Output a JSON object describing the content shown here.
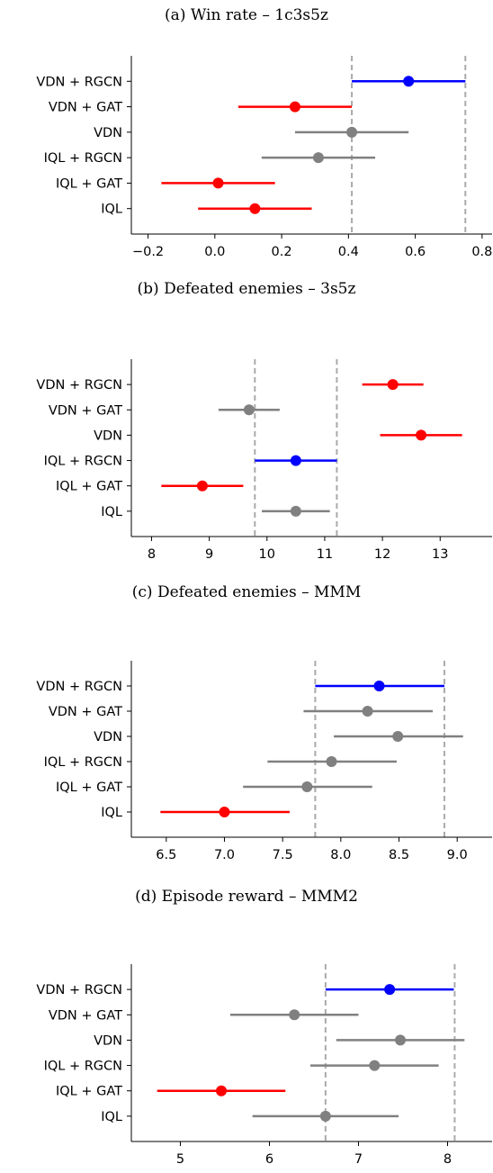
{
  "colors": {
    "significant_better": "#0000ff",
    "significant_worse": "#ff0000",
    "not_significant": "#808080",
    "reference": "#aaaaaa"
  },
  "chart_data": [
    {
      "type": "scatter",
      "title": "(a) Win rate – 1c3s5z",
      "categories": [
        "VDN + RGCN",
        "VDN + GAT",
        "VDN",
        "IQL + RGCN",
        "IQL + GAT",
        "IQL"
      ],
      "means": [
        0.58,
        0.24,
        0.41,
        0.31,
        0.01,
        0.12
      ],
      "ci_low": [
        0.41,
        0.07,
        0.24,
        0.14,
        -0.16,
        -0.05
      ],
      "ci_high": [
        0.75,
        0.41,
        0.58,
        0.48,
        0.18,
        0.29
      ],
      "colors": [
        "#0000ff",
        "#ff0000",
        "#808080",
        "#808080",
        "#ff0000",
        "#ff0000"
      ],
      "reference_lines": [
        0.41,
        0.75
      ],
      "xlim": [
        -0.25,
        0.83
      ],
      "xticks": [
        -0.2,
        0.0,
        0.2,
        0.4,
        0.6,
        0.8
      ],
      "xtick_labels": [
        "−0.2",
        "0.0",
        "0.2",
        "0.4",
        "0.6",
        "0.8"
      ]
    },
    {
      "type": "scatter",
      "title": "(b) Defeated enemies – 3s5z",
      "categories": [
        "VDN + RGCN",
        "VDN + GAT",
        "VDN",
        "IQL + RGCN",
        "IQL + GAT",
        "IQL"
      ],
      "means": [
        12.18,
        9.69,
        12.67,
        10.5,
        8.88,
        10.5
      ],
      "ci_low": [
        11.65,
        9.16,
        11.96,
        9.79,
        8.17,
        9.91
      ],
      "ci_high": [
        12.71,
        10.22,
        13.38,
        11.21,
        9.59,
        11.09
      ],
      "colors": [
        "#ff0000",
        "#808080",
        "#ff0000",
        "#0000ff",
        "#ff0000",
        "#808080"
      ],
      "reference_lines": [
        9.79,
        11.21
      ],
      "xlim": [
        7.65,
        13.9
      ],
      "xticks": [
        8,
        9,
        10,
        11,
        12,
        13
      ],
      "xtick_labels": [
        "8",
        "9",
        "10",
        "11",
        "12",
        "13"
      ]
    },
    {
      "type": "scatter",
      "title": "(c) Defeated enemies – MMM",
      "categories": [
        "VDN + RGCN",
        "VDN + GAT",
        "VDN",
        "IQL + RGCN",
        "IQL + GAT",
        "IQL"
      ],
      "means": [
        8.33,
        8.23,
        8.49,
        7.92,
        7.71,
        7.0
      ],
      "ci_low": [
        7.78,
        7.68,
        7.94,
        7.37,
        7.16,
        6.45
      ],
      "ci_high": [
        8.89,
        8.79,
        9.05,
        8.48,
        8.27,
        7.56
      ],
      "colors": [
        "#0000ff",
        "#808080",
        "#808080",
        "#808080",
        "#808080",
        "#ff0000"
      ],
      "reference_lines": [
        7.78,
        8.89
      ],
      "xlim": [
        6.2,
        9.3
      ],
      "xticks": [
        6.5,
        7.0,
        7.5,
        8.0,
        8.5,
        9.0
      ],
      "xtick_labels": [
        "6.5",
        "7.0",
        "7.5",
        "8.0",
        "8.5",
        "9.0"
      ]
    },
    {
      "type": "scatter",
      "title": "(d) Episode reward – MMM2",
      "categories": [
        "VDN + RGCN",
        "VDN + GAT",
        "VDN",
        "IQL + RGCN",
        "IQL + GAT",
        "IQL"
      ],
      "means": [
        7.35,
        6.28,
        7.47,
        7.18,
        5.46,
        6.63
      ],
      "ci_low": [
        6.63,
        5.56,
        6.75,
        6.46,
        4.74,
        5.81
      ],
      "ci_high": [
        8.07,
        7.0,
        8.19,
        7.9,
        6.18,
        7.45
      ],
      "colors": [
        "#0000ff",
        "#808080",
        "#808080",
        "#808080",
        "#ff0000",
        "#808080"
      ],
      "reference_lines": [
        6.63,
        8.08
      ],
      "xlim": [
        4.45,
        8.5
      ],
      "xticks": [
        5,
        6,
        7,
        8
      ],
      "xtick_labels": [
        "5",
        "6",
        "7",
        "8"
      ]
    }
  ]
}
